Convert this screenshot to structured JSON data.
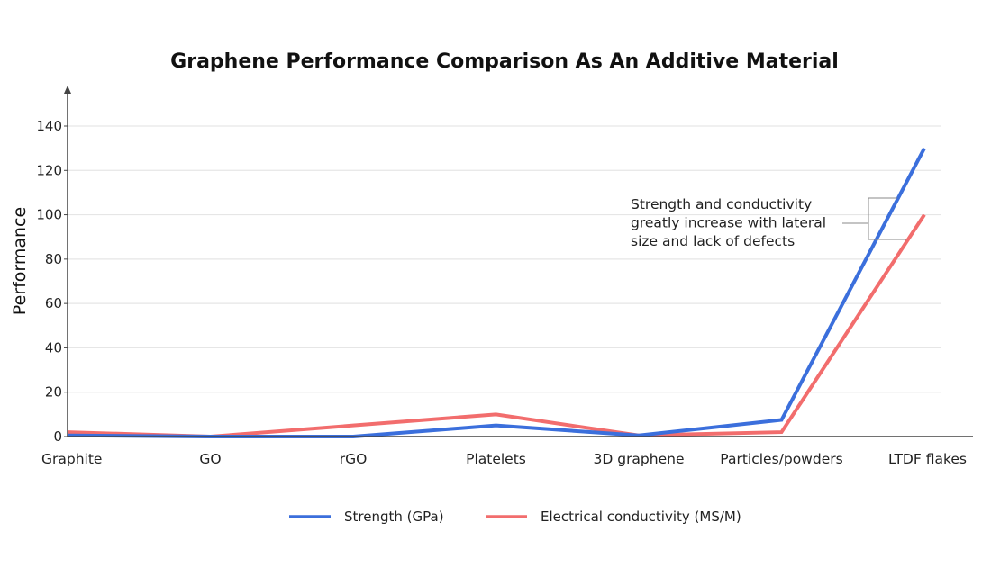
{
  "chart_data": {
    "type": "line",
    "title": "Graphene Performance Comparison As An Additive Material",
    "xlabel": "",
    "ylabel": "Performance",
    "categories": [
      "Graphite",
      "GO",
      "rGO",
      "Platelets",
      "3D graphene",
      "Particles/powders",
      "LTDF flakes"
    ],
    "ylim": [
      0,
      150
    ],
    "yticks": [
      0,
      20,
      40,
      60,
      80,
      100,
      120,
      140
    ],
    "grid": true,
    "legend_position": "bottom-center",
    "series": [
      {
        "name": "Strength (GPa)",
        "color": "#3b6fdc",
        "values": [
          0.5,
          0,
          0,
          5,
          0.5,
          7.5,
          130
        ]
      },
      {
        "name": "Electrical conductivity (MS/M)",
        "color": "#f26d6d",
        "values": [
          2,
          0,
          5,
          10,
          0.5,
          2,
          100
        ]
      }
    ],
    "annotation": {
      "lines": [
        "Strength and conductivity",
        "greatly increase with lateral",
        "size and lack of defects"
      ]
    }
  }
}
